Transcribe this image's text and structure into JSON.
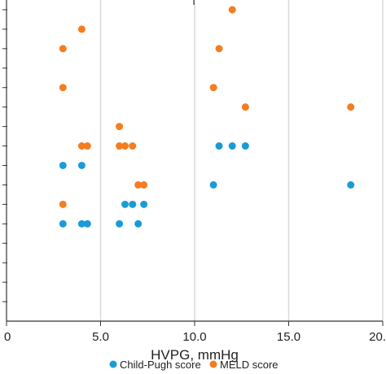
{
  "chart_data": {
    "type": "scatter",
    "xlabel": "HVPG, mmHg",
    "ylabel": "",
    "xlim": [
      0,
      20
    ],
    "ylim": [
      0,
      16.5
    ],
    "x_ticks": [
      "0",
      "5.0",
      "10.0",
      "15.0",
      "20."
    ],
    "grid": "vertical",
    "legend_position": "bottom",
    "series": [
      {
        "name": "Child-Pugh score",
        "color": "#1a9bd7",
        "points": [
          {
            "x": 3.0,
            "y": 5
          },
          {
            "x": 4.0,
            "y": 5
          },
          {
            "x": 4.3,
            "y": 5
          },
          {
            "x": 6.0,
            "y": 5
          },
          {
            "x": 7.0,
            "y": 5
          },
          {
            "x": 6.3,
            "y": 6
          },
          {
            "x": 6.7,
            "y": 6
          },
          {
            "x": 7.3,
            "y": 6
          },
          {
            "x": 11.0,
            "y": 7
          },
          {
            "x": 18.3,
            "y": 7
          },
          {
            "x": 3.0,
            "y": 8
          },
          {
            "x": 4.0,
            "y": 8
          },
          {
            "x": 11.3,
            "y": 9
          },
          {
            "x": 12.0,
            "y": 9
          },
          {
            "x": 12.7,
            "y": 9
          }
        ]
      },
      {
        "name": "MELD score",
        "color": "#f47d20",
        "points": [
          {
            "x": 3.0,
            "y": 6
          },
          {
            "x": 7.0,
            "y": 7
          },
          {
            "x": 7.3,
            "y": 7
          },
          {
            "x": 4.0,
            "y": 9
          },
          {
            "x": 4.3,
            "y": 9
          },
          {
            "x": 6.0,
            "y": 9
          },
          {
            "x": 6.3,
            "y": 9
          },
          {
            "x": 6.7,
            "y": 9
          },
          {
            "x": 6.0,
            "y": 10
          },
          {
            "x": 12.7,
            "y": 11
          },
          {
            "x": 18.3,
            "y": 11
          },
          {
            "x": 3.0,
            "y": 12
          },
          {
            "x": 11.0,
            "y": 12
          },
          {
            "x": 3.0,
            "y": 14
          },
          {
            "x": 11.3,
            "y": 14
          },
          {
            "x": 4.0,
            "y": 15
          },
          {
            "x": 12.0,
            "y": 16
          }
        ]
      }
    ]
  }
}
